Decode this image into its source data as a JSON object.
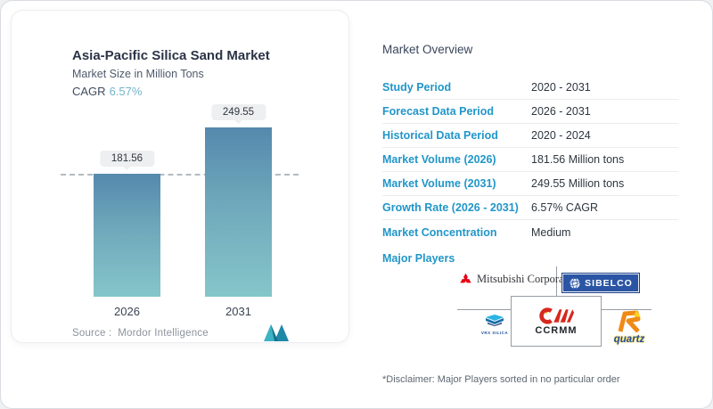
{
  "chart_panel": {
    "title": "Asia-Pacific Silica Sand Market",
    "subtitle": "Market Size in Million Tons",
    "cagr_label": "CAGR",
    "cagr_value": "6.57%",
    "source_label": "Source :",
    "source_value": "Mordor Intelligence"
  },
  "chart_data": {
    "type": "bar",
    "title": "Asia-Pacific Silica Sand Market",
    "ylabel": "Market Size in Million Tons",
    "categories": [
      "2026",
      "2031"
    ],
    "values": [
      181.56,
      249.55
    ],
    "value_labels": [
      "181.56",
      "249.55"
    ],
    "cagr": "6.57%",
    "reference_line_value": 181.56,
    "grid": false,
    "legend": false
  },
  "overview": {
    "heading": "Market Overview",
    "rows": [
      {
        "label": "Study Period",
        "value": "2020 - 2031"
      },
      {
        "label": "Forecast Data Period",
        "value": "2026 - 2031"
      },
      {
        "label": "Historical Data Period",
        "value": "2020 - 2024"
      },
      {
        "label": "Market Volume (2026)",
        "value": "181.56 Million tons"
      },
      {
        "label": "Market Volume (2031)",
        "value": "249.55 Million tons"
      },
      {
        "label": "Growth Rate (2026 - 2031)",
        "value": "6.57% CAGR"
      },
      {
        "label": "Market Concentration",
        "value": "Medium"
      }
    ],
    "major_players_label": "Major Players",
    "major_players": [
      {
        "name": "Mitsubishi Corporation"
      },
      {
        "name": "SIBELCO"
      },
      {
        "name": "VRX SILICA"
      },
      {
        "name": "CCRMM"
      },
      {
        "name": "quartz"
      }
    ],
    "disclaimer": "*Disclaimer: Major Players sorted in no particular order"
  },
  "colors": {
    "label_blue": "#2196c9",
    "cagr_teal": "#72b5cb",
    "bar_gradient_top": "#5589ad",
    "bar_gradient_bottom": "#85c6ca",
    "sibelco_blue": "#2b55a4",
    "mitsubishi_red": "#e60012",
    "ccrmm_red": "#d6281e",
    "quartz_orange": "#f08a17"
  }
}
